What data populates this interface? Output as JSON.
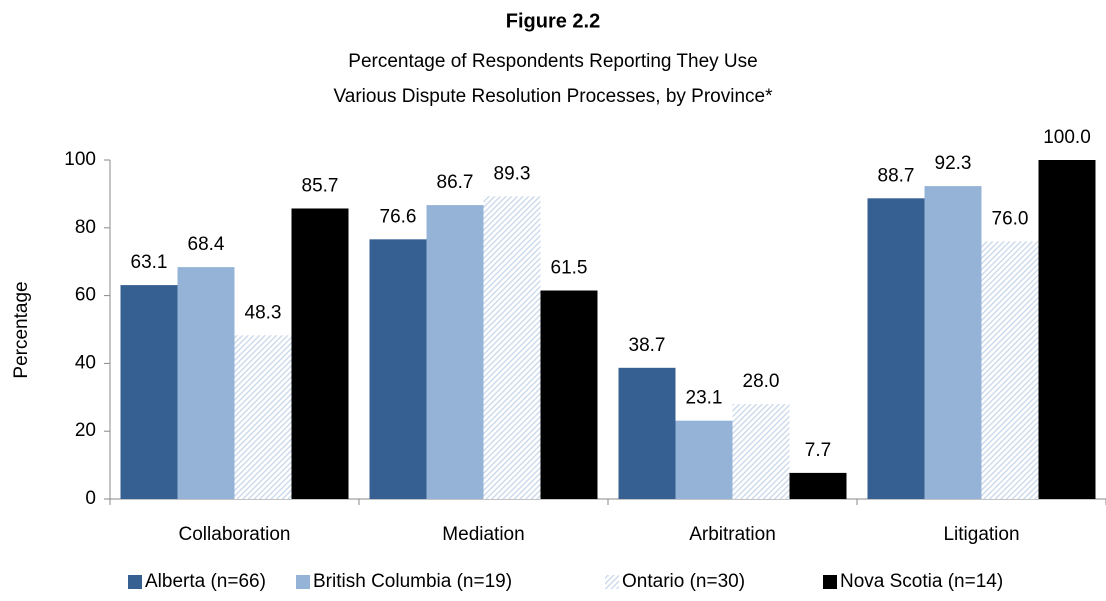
{
  "chart_data": {
    "type": "bar",
    "title": "Figure 2.2",
    "subtitle": [
      "Percentage of Respondents Reporting They Use",
      "Various Dispute Resolution Processes, by Province*"
    ],
    "y_label": "Percentage",
    "categories": [
      "Collaboration",
      "Mediation",
      "Arbitration",
      "Litigation"
    ],
    "series": [
      {
        "name": "Alberta (n=66)",
        "color": "#376092",
        "values": [
          63.1,
          76.6,
          38.7,
          88.7
        ],
        "value_labels": [
          "63.1",
          "76.6",
          "38.7",
          "88.7"
        ]
      },
      {
        "name": "British Columbia (n=19)",
        "color": "#95b3d7",
        "values": [
          68.4,
          86.7,
          23.1,
          92.3
        ],
        "value_labels": [
          "68.4",
          "86.7",
          "23.1",
          "92.3"
        ]
      },
      {
        "name": "Ontario (n=30)",
        "color": "#c6d5ea",
        "hatched": true,
        "values": [
          48.3,
          89.3,
          28.0,
          76.0
        ],
        "value_labels": [
          "48.3",
          "89.3",
          "28.0",
          "76.0"
        ]
      },
      {
        "name": "Nova Scotia (n=14)",
        "color": "#000000",
        "values": [
          85.7,
          61.5,
          7.7,
          100.0
        ],
        "value_labels": [
          "85.7",
          "61.5",
          "7.7",
          "100.0"
        ]
      }
    ],
    "ylim": [
      0,
      100
    ],
    "yticks": [
      0,
      20,
      40,
      60,
      80,
      100
    ],
    "grid": false,
    "legend": "bottom"
  }
}
